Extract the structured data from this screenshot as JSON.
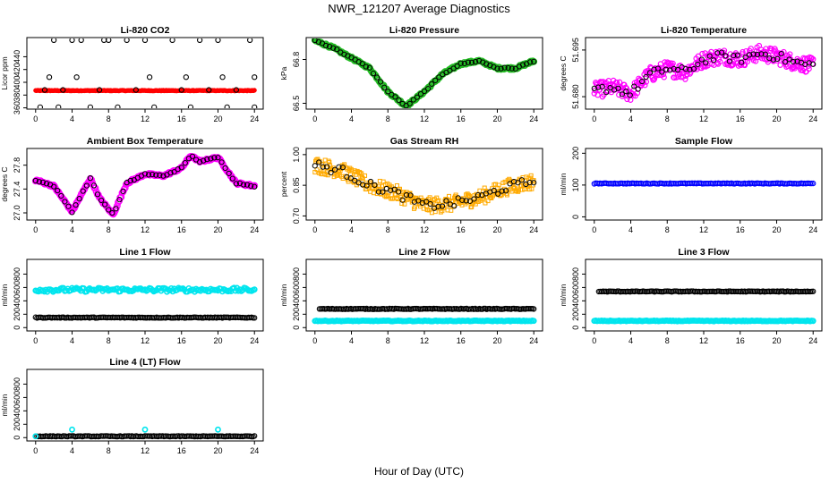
{
  "title": "NWR_121207  Average Diagnostics",
  "xlabel": "Hour of Day (UTC)",
  "colors": {
    "black": "#000000",
    "red": "#ff0000",
    "green": "#22bb22",
    "magenta": "#ff00ff",
    "orange": "#ffaa00",
    "blue": "#0000ff",
    "cyan": "#00e5ee"
  },
  "chart_data": [
    {
      "id": "co2",
      "type": "scatter",
      "title": "Li-820 CO2",
      "ylabel": "Licor ppm",
      "xticks": [
        0,
        4,
        8,
        12,
        16,
        20,
        24
      ],
      "yticks": [
        360,
        380,
        400,
        420,
        440
      ],
      "yticklabels": [
        "360",
        "380",
        "400",
        "420",
        "440"
      ],
      "ylim": [
        358,
        470
      ],
      "series": [
        {
          "color": "red",
          "marker": "dot",
          "values": [
            {
              "x": 0,
              "y": 387
            },
            {
              "x": 24,
              "y": 387
            }
          ]
        },
        {
          "color": "black",
          "marker": "circle",
          "values": [
            {
              "x": 0.5,
              "y": 361
            },
            {
              "x": 2,
              "y": 466
            },
            {
              "x": 2.5,
              "y": 361
            },
            {
              "x": 3,
              "y": 388
            },
            {
              "x": 4,
              "y": 466
            },
            {
              "x": 4.5,
              "y": 408
            },
            {
              "x": 5,
              "y": 466
            },
            {
              "x": 6,
              "y": 361
            },
            {
              "x": 7,
              "y": 388
            },
            {
              "x": 7.5,
              "y": 466
            },
            {
              "x": 8,
              "y": 466
            },
            {
              "x": 9,
              "y": 361
            },
            {
              "x": 10,
              "y": 466
            },
            {
              "x": 11,
              "y": 388
            },
            {
              "x": 12,
              "y": 466
            },
            {
              "x": 12.5,
              "y": 408
            },
            {
              "x": 13,
              "y": 361
            },
            {
              "x": 15,
              "y": 466
            },
            {
              "x": 16,
              "y": 388
            },
            {
              "x": 16.5,
              "y": 408
            },
            {
              "x": 17,
              "y": 361
            },
            {
              "x": 18,
              "y": 466
            },
            {
              "x": 19,
              "y": 388
            },
            {
              "x": 20,
              "y": 466
            },
            {
              "x": 20.5,
              "y": 408
            },
            {
              "x": 21,
              "y": 361
            },
            {
              "x": 22,
              "y": 388
            },
            {
              "x": 23.5,
              "y": 466
            },
            {
              "x": 24,
              "y": 408
            },
            {
              "x": 24,
              "y": 361
            },
            {
              "x": 1,
              "y": 388
            },
            {
              "x": 1.5,
              "y": 408
            }
          ]
        }
      ]
    },
    {
      "id": "pressure",
      "type": "scatter",
      "title": "Li-820 Pressure",
      "ylabel": "kPa",
      "xticks": [
        0,
        4,
        8,
        12,
        16,
        20,
        24
      ],
      "yticks": [
        66.5,
        66.8
      ],
      "yticklabels": [
        "66.5",
        "66.8"
      ],
      "ylim": [
        66.46,
        66.95
      ],
      "series": [
        {
          "color": "green",
          "marker": "circle",
          "shape": "curve",
          "values": [
            {
              "x": 0,
              "y": 66.93
            },
            {
              "x": 2,
              "y": 66.88
            },
            {
              "x": 4,
              "y": 66.81
            },
            {
              "x": 6,
              "y": 66.74
            },
            {
              "x": 8,
              "y": 66.58
            },
            {
              "x": 10,
              "y": 66.48
            },
            {
              "x": 12,
              "y": 66.58
            },
            {
              "x": 14,
              "y": 66.7
            },
            {
              "x": 16,
              "y": 66.77
            },
            {
              "x": 18,
              "y": 66.79
            },
            {
              "x": 20,
              "y": 66.74
            },
            {
              "x": 22,
              "y": 66.74
            },
            {
              "x": 24,
              "y": 66.79
            }
          ]
        }
      ]
    },
    {
      "id": "temp",
      "type": "scatter",
      "title": "Li-820 Temperature",
      "ylabel": "degrees C",
      "xticks": [
        0,
        4,
        8,
        12,
        16,
        20,
        24
      ],
      "yticks": [
        51.68,
        51.695
      ],
      "yticklabels": [
        "51.680",
        "51.695"
      ],
      "ylim": [
        51.676,
        51.699
      ],
      "series": [
        {
          "color": "magenta",
          "marker": "circle",
          "shape": "noisy",
          "values": [
            {
              "x": 0,
              "y": 51.682
            },
            {
              "x": 2,
              "y": 51.683
            },
            {
              "x": 4,
              "y": 51.681
            },
            {
              "x": 6,
              "y": 51.687
            },
            {
              "x": 8,
              "y": 51.689
            },
            {
              "x": 10,
              "y": 51.688
            },
            {
              "x": 12,
              "y": 51.692
            },
            {
              "x": 14,
              "y": 51.693
            },
            {
              "x": 16,
              "y": 51.692
            },
            {
              "x": 18,
              "y": 51.694
            },
            {
              "x": 20,
              "y": 51.693
            },
            {
              "x": 22,
              "y": 51.691
            },
            {
              "x": 24,
              "y": 51.69
            }
          ]
        }
      ]
    },
    {
      "id": "boxtemp",
      "type": "scatter",
      "title": "Ambient Box Temperature",
      "ylabel": "degrees C",
      "xticks": [
        0,
        4,
        8,
        12,
        16,
        20,
        24
      ],
      "yticks": [
        27.0,
        27.4,
        27.8
      ],
      "yticklabels": [
        "27.0",
        "27.4",
        "27.8"
      ],
      "ylim": [
        26.88,
        28.08
      ],
      "series": [
        {
          "color": "magenta",
          "marker": "circle",
          "shape": "curve",
          "values": [
            {
              "x": 0,
              "y": 27.55
            },
            {
              "x": 2,
              "y": 27.45
            },
            {
              "x": 4,
              "y": 27.02
            },
            {
              "x": 6,
              "y": 27.58
            },
            {
              "x": 7,
              "y": 27.25
            },
            {
              "x": 8.5,
              "y": 26.97
            },
            {
              "x": 10,
              "y": 27.5
            },
            {
              "x": 12,
              "y": 27.65
            },
            {
              "x": 14,
              "y": 27.62
            },
            {
              "x": 16,
              "y": 27.75
            },
            {
              "x": 17,
              "y": 27.96
            },
            {
              "x": 18,
              "y": 27.86
            },
            {
              "x": 20,
              "y": 27.93
            },
            {
              "x": 22,
              "y": 27.5
            },
            {
              "x": 24,
              "y": 27.45
            }
          ]
        }
      ]
    },
    {
      "id": "rh",
      "type": "scatter",
      "title": "Gas Stream RH",
      "ylabel": "percent",
      "xticks": [
        0,
        4,
        8,
        12,
        16,
        20,
        24
      ],
      "yticks": [
        0.7,
        0.85,
        1.0
      ],
      "yticklabels": [
        "0.70",
        "0.85",
        "1.00"
      ],
      "ylim": [
        0.68,
        1.03
      ],
      "series": [
        {
          "color": "orange",
          "marker": "square",
          "shape": "noisy",
          "values": [
            {
              "x": 0,
              "y": 0.95
            },
            {
              "x": 3,
              "y": 0.92
            },
            {
              "x": 6,
              "y": 0.85
            },
            {
              "x": 9,
              "y": 0.81
            },
            {
              "x": 12,
              "y": 0.75
            },
            {
              "x": 15,
              "y": 0.76
            },
            {
              "x": 18,
              "y": 0.79
            },
            {
              "x": 21,
              "y": 0.84
            },
            {
              "x": 24,
              "y": 0.87
            }
          ]
        }
      ]
    },
    {
      "id": "sample",
      "type": "scatter",
      "title": "Sample Flow",
      "ylabel": "ml/min",
      "xticks": [
        0,
        4,
        8,
        12,
        16,
        20,
        24
      ],
      "yticks": [
        0,
        100,
        200
      ],
      "yticklabels": [
        "0",
        "100",
        "200"
      ],
      "ylim": [
        -10,
        215
      ],
      "series": [
        {
          "color": "blue",
          "marker": "circle",
          "values": [
            {
              "x": 0,
              "y": 105
            },
            {
              "x": 24,
              "y": 105
            }
          ]
        }
      ]
    },
    {
      "id": "line1",
      "type": "scatter",
      "title": "Line 1 Flow",
      "ylabel": "ml/min",
      "xticks": [
        0,
        4,
        8,
        12,
        16,
        20,
        24
      ],
      "yticks": [
        0,
        200,
        400,
        600,
        800
      ],
      "yticklabels": [
        "0",
        "200",
        "400",
        "600",
        "800"
      ],
      "ylim": [
        -50,
        1020
      ],
      "series": [
        {
          "color": "cyan",
          "marker": "circle",
          "values": [
            {
              "x": 0,
              "y": 565
            },
            {
              "x": 24,
              "y": 565
            }
          ]
        },
        {
          "color": "black",
          "marker": "circle",
          "values": [
            {
              "x": 0,
              "y": 150
            },
            {
              "x": 24,
              "y": 150
            }
          ]
        }
      ]
    },
    {
      "id": "line2",
      "type": "scatter",
      "title": "Line 2 Flow",
      "ylabel": "ml/min",
      "xticks": [
        0,
        4,
        8,
        12,
        16,
        20,
        24
      ],
      "yticks": [
        0,
        200,
        400,
        600,
        800
      ],
      "yticklabels": [
        "0",
        "200",
        "400",
        "600",
        "800"
      ],
      "ylim": [
        -50,
        1020
      ],
      "series": [
        {
          "color": "cyan",
          "marker": "circle",
          "values": [
            {
              "x": 0,
              "y": 100
            },
            {
              "x": 24,
              "y": 100
            }
          ]
        },
        {
          "color": "black",
          "marker": "circle",
          "values": [
            {
              "x": 0.5,
              "y": 280
            },
            {
              "x": 24,
              "y": 280
            }
          ]
        }
      ]
    },
    {
      "id": "line3",
      "type": "scatter",
      "title": "Line 3 Flow",
      "ylabel": "ml/min",
      "xticks": [
        0,
        4,
        8,
        12,
        16,
        20,
        24
      ],
      "yticks": [
        0,
        200,
        400,
        600,
        800
      ],
      "yticklabels": [
        "0",
        "200",
        "400",
        "600",
        "800"
      ],
      "ylim": [
        -50,
        1020
      ],
      "series": [
        {
          "color": "cyan",
          "marker": "circle",
          "values": [
            {
              "x": 0,
              "y": 100
            },
            {
              "x": 24,
              "y": 100
            }
          ]
        },
        {
          "color": "black",
          "marker": "circle",
          "values": [
            {
              "x": 0.5,
              "y": 540
            },
            {
              "x": 24,
              "y": 540
            }
          ]
        }
      ]
    },
    {
      "id": "line4",
      "type": "scatter",
      "title": "Line 4 (LT) Flow",
      "ylabel": "ml/min",
      "xticks": [
        0,
        4,
        8,
        12,
        16,
        20,
        24
      ],
      "yticks": [
        0,
        200,
        400,
        600,
        800
      ],
      "yticklabels": [
        "0",
        "200",
        "400",
        "600",
        "800"
      ],
      "ylim": [
        -50,
        1020
      ],
      "series": [
        {
          "color": "black",
          "marker": "circle",
          "values": [
            {
              "x": 0,
              "y": 20
            },
            {
              "x": 24,
              "y": 20
            }
          ]
        },
        {
          "color": "cyan",
          "marker": "circle",
          "values": [
            {
              "x": 0,
              "y": 20
            },
            {
              "x": 4,
              "y": 120
            },
            {
              "x": 12,
              "y": 120
            },
            {
              "x": 20,
              "y": 120
            }
          ]
        }
      ]
    }
  ]
}
